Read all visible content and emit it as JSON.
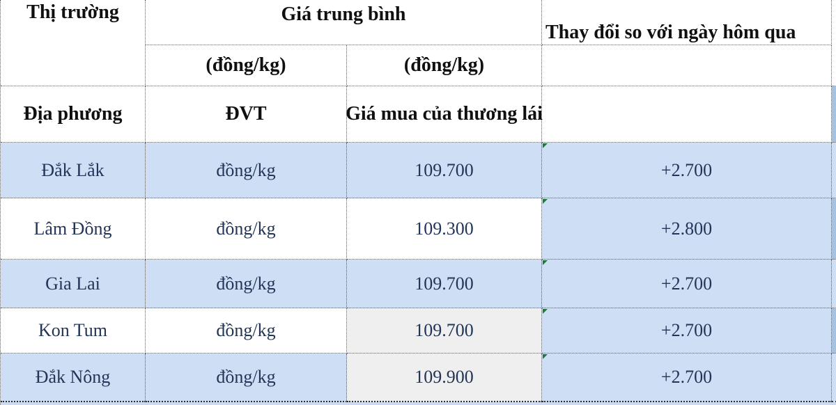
{
  "header": {
    "market_label": "Thị trường",
    "avg_price_label": "Giá trung bình",
    "unit_col2_label": "(đồng/kg)",
    "unit_col3_label": "(đồng/kg)",
    "change_label": "Thay đổi so với ngày hôm qua",
    "locality_label": "Địa phương",
    "unit_abbr_label": "ĐVT",
    "buy_price_label": "Giá mua của thương lái"
  },
  "rows": [
    {
      "market": "Đắk Lắk",
      "unit": "đồng/kg",
      "price": "109.700",
      "change": "+2.700"
    },
    {
      "market": "Lâm Đồng",
      "unit": "đồng/kg",
      "price": "109.300",
      "change": "+2.800"
    },
    {
      "market": "Gia Lai",
      "unit": "đồng/kg",
      "price": "109.700",
      "change": "+2.700"
    },
    {
      "market": "Kon Tum",
      "unit": "đồng/kg",
      "price": "109.700",
      "change": "+2.700"
    },
    {
      "market": "Đắk Nông",
      "unit": "đồng/kg",
      "price": "109.900",
      "change": "+2.700"
    }
  ],
  "icons": {
    "change_cell_flag": "green-corner-triangle"
  },
  "colors": {
    "row_highlight_blue": "#cedff5",
    "cell_grey": "#efefef",
    "next_column_sliver_blue": "#a6c2de",
    "bottom_strip_blue": "#cbdaf0",
    "flag_green": "#1f7a38",
    "data_text": "#223457",
    "header_text": "#101010",
    "grid_border": "#5a5a5a"
  }
}
